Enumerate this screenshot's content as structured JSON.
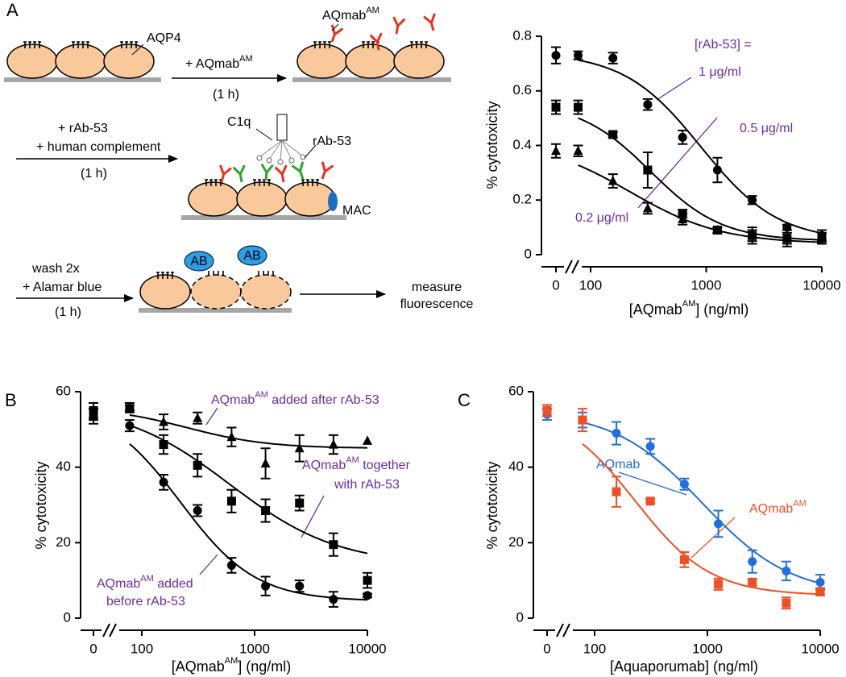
{
  "diagram": {
    "panel_labels": [
      "A",
      "B",
      "C"
    ],
    "aqp4": "AQP4",
    "step1": {
      "reagent": [
        "+ AQmab",
        "AM"
      ],
      "time": "(1 h)"
    },
    "aqmab_label": [
      "AQmab",
      "AM"
    ],
    "step2": {
      "reagents": [
        "+ rAb-53",
        "+ human complement"
      ],
      "time": "(1 h)"
    },
    "c1q": "C1q",
    "rab53": "rAb-53",
    "mac": "MAC",
    "step3": {
      "reagents": [
        "wash 2x",
        "+ Alamar blue"
      ],
      "time": "(1 h)"
    },
    "ab": [
      "AB",
      "AB"
    ],
    "readout": [
      "measure",
      "fluorescence"
    ]
  },
  "chart_data": [
    {
      "type": "scatter",
      "x_label": [
        "[AQmab",
        "AM",
        "] (ng/ml)"
      ],
      "y_label": "% cytotoxicity",
      "x": [
        0,
        78,
        156,
        312,
        625,
        1250,
        2500,
        5000,
        10000
      ],
      "xscale": "log",
      "x_break": true,
      "xlim": [
        0,
        10000
      ],
      "xticks": [
        0,
        100,
        1000,
        10000
      ],
      "ylim": [
        0,
        0.8
      ],
      "yticks": [
        0,
        0.2,
        0.4,
        0.6,
        0.8
      ],
      "annotations": [
        "[rAb-53] =",
        "1 μg/ml",
        "0.5 μg/ml",
        "0.2 μg/ml"
      ],
      "series": [
        {
          "marker": "circle",
          "color": "#000000",
          "values": [
            0.73,
            0.73,
            0.72,
            0.55,
            0.43,
            0.31,
            0.2,
            0.1,
            0.07
          ],
          "errors": [
            0.03,
            0.015,
            0.02,
            0.02,
            0.025,
            0.045,
            0.015,
            0.01,
            0.02
          ],
          "fit": {
            "top": 0.74,
            "bottom": 0.05,
            "ec50": 900,
            "hill": 1.3
          }
        },
        {
          "marker": "square",
          "color": "#000000",
          "values": [
            0.54,
            0.54,
            0.44,
            0.31,
            0.15,
            0.09,
            0.07,
            0.06,
            0.06
          ],
          "errors": [
            0.025,
            0.025,
            0.01,
            0.065,
            0.015,
            0.01,
            0.03,
            0.03,
            0.02
          ],
          "fit": {
            "top": 0.56,
            "bottom": 0.05,
            "ec50": 330,
            "hill": 1.4
          }
        },
        {
          "marker": "triangle",
          "color": "#000000",
          "values": [
            0.38,
            0.38,
            0.27,
            0.17,
            0.13,
            0.09,
            0.07,
            0.06,
            0.07
          ],
          "errors": [
            0.025,
            0.02,
            0.025,
            0.02,
            0.02,
            0.01,
            0.02,
            0.02,
            0.02
          ],
          "fit": {
            "top": 0.42,
            "bottom": 0.04,
            "ec50": 220,
            "hill": 1.1
          }
        }
      ]
    },
    {
      "type": "scatter",
      "x_label": [
        "[AQmab",
        "AM",
        "] (ng/ml)"
      ],
      "y_label": "% cytotoxicity",
      "x": [
        0,
        78,
        156,
        312,
        625,
        1250,
        2500,
        5000,
        10000
      ],
      "xscale": "log",
      "x_break": true,
      "xlim": [
        0,
        10000
      ],
      "xticks": [
        0,
        100,
        1000,
        10000
      ],
      "ylim": [
        0,
        60
      ],
      "yticks": [
        0,
        20,
        40,
        60
      ],
      "annotations": [
        [
          "AQmab",
          "AM",
          " added after rAb-53"
        ],
        [
          "AQmab",
          "AM",
          " together",
          "with rAb-53"
        ],
        [
          "AQmab",
          "AM",
          " added",
          "before rAb-53"
        ]
      ],
      "series": [
        {
          "marker": "triangle",
          "color": "#000000",
          "values": [
            54,
            56,
            52,
            53,
            48,
            41,
            45,
            46,
            47
          ],
          "errors": [
            1.5,
            1,
            2,
            1.5,
            2.5,
            4,
            3.5,
            2.5,
            0
          ],
          "fit": {
            "top": 56,
            "bottom": 45,
            "ec50": 250,
            "hill": 1.2
          }
        },
        {
          "marker": "square",
          "color": "#000000",
          "values": [
            55,
            55.5,
            46,
            40.5,
            31,
            28.5,
            30.5,
            19.5,
            10
          ],
          "errors": [
            2,
            1,
            2.5,
            3,
            3,
            3,
            2,
            3,
            2
          ],
          "fit": {
            "top": 57,
            "bottom": 14,
            "ec50": 600,
            "hill": 0.9
          }
        },
        {
          "marker": "circle",
          "color": "#000000",
          "values": [
            53.5,
            51,
            36,
            28.5,
            14,
            8.5,
            8.5,
            5,
            6
          ],
          "errors": [
            2,
            1.5,
            2,
            1.5,
            2,
            2.5,
            1.5,
            2,
            0.5
          ],
          "fit": {
            "top": 57,
            "bottom": 4.5,
            "ec50": 220,
            "hill": 1.3
          }
        }
      ]
    },
    {
      "type": "scatter",
      "x_label": [
        "[Aquaporumab] (ng/ml)"
      ],
      "y_label": "% cytotoxicity",
      "x": [
        0,
        78,
        156,
        312,
        625,
        1250,
        2500,
        5000,
        10000
      ],
      "xscale": "log",
      "x_break": true,
      "xlim": [
        0,
        10000
      ],
      "xticks": [
        0,
        100,
        1000,
        10000
      ],
      "ylim": [
        0,
        60
      ],
      "yticks": [
        0,
        20,
        40,
        60
      ],
      "annotations": [
        [
          "AQmab"
        ],
        [
          "AQmab",
          "AM"
        ]
      ],
      "series": [
        {
          "marker": "circle",
          "color": "#1f6fe0",
          "values": [
            54,
            52.5,
            49,
            45.5,
            35.5,
            25,
            15,
            12.5,
            9.5
          ],
          "errors": [
            1.5,
            2,
            3,
            2,
            1.5,
            3.5,
            3,
            2.5,
            2
          ],
          "fit": {
            "top": 55,
            "bottom": 6,
            "ec50": 900,
            "hill": 1.1
          }
        },
        {
          "marker": "square",
          "color": "#f04e23",
          "values": [
            55,
            52.5,
            33.5,
            31,
            15.5,
            9,
            9.5,
            4,
            7
          ],
          "errors": [
            1.5,
            3,
            4,
            0.5,
            2,
            1.5,
            1,
            1.5,
            1
          ],
          "fit": {
            "top": 56,
            "bottom": 6,
            "ec50": 230,
            "hill": 1.3
          }
        }
      ]
    }
  ]
}
